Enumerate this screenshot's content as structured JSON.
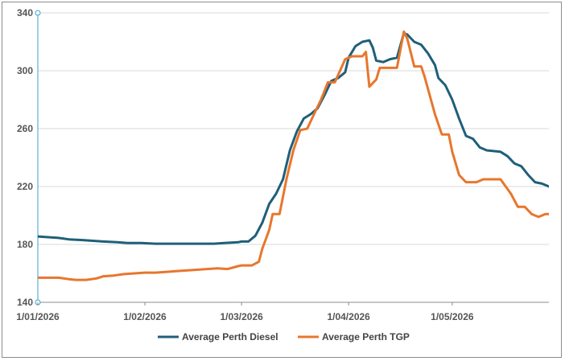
{
  "chart_data": {
    "type": "line",
    "title": "",
    "xlabel": "",
    "ylabel": "",
    "ylim": [
      140,
      340
    ],
    "y_ticks": [
      140,
      180,
      220,
      260,
      300,
      340
    ],
    "x_tick_labels": [
      "1/01/2026",
      "1/02/2026",
      "1/03/2026",
      "1/04/2026",
      "1/05/2026"
    ],
    "x_ticks": [
      "2026-01-01",
      "2026-02-01",
      "2026-03-01",
      "2026-04-01",
      "2026-05-01"
    ],
    "xlim": [
      "2026-01-01",
      "2026-05-29"
    ],
    "grid": true,
    "legend_position": "bottom",
    "series": [
      {
        "name": "Average Perth Diesel",
        "color": "#1f5f7a",
        "points": [
          [
            "2026-01-01",
            185.5
          ],
          [
            "2026-01-04",
            185
          ],
          [
            "2026-01-07",
            184.5
          ],
          [
            "2026-01-10",
            183.5
          ],
          [
            "2026-01-14",
            183
          ],
          [
            "2026-01-17",
            182.5
          ],
          [
            "2026-01-20",
            182
          ],
          [
            "2026-01-24",
            181.5
          ],
          [
            "2026-01-27",
            181
          ],
          [
            "2026-01-31",
            181
          ],
          [
            "2026-02-04",
            180.5
          ],
          [
            "2026-02-07",
            180.5
          ],
          [
            "2026-02-10",
            180.5
          ],
          [
            "2026-02-14",
            180.5
          ],
          [
            "2026-02-17",
            180.5
          ],
          [
            "2026-02-21",
            180.5
          ],
          [
            "2026-02-24",
            181
          ],
          [
            "2026-02-28",
            181.5
          ],
          [
            "2026-03-01",
            182
          ],
          [
            "2026-03-03",
            182
          ],
          [
            "2026-03-05",
            186
          ],
          [
            "2026-03-07",
            195
          ],
          [
            "2026-03-09",
            208
          ],
          [
            "2026-03-11",
            215
          ],
          [
            "2026-03-13",
            225
          ],
          [
            "2026-03-15",
            245
          ],
          [
            "2026-03-17",
            258
          ],
          [
            "2026-03-19",
            267
          ],
          [
            "2026-03-21",
            270
          ],
          [
            "2026-03-23",
            274
          ],
          [
            "2026-03-25",
            283
          ],
          [
            "2026-03-27",
            293
          ],
          [
            "2026-03-29",
            295
          ],
          [
            "2026-03-31",
            299
          ],
          [
            "2026-04-01",
            309
          ],
          [
            "2026-04-03",
            317
          ],
          [
            "2026-04-05",
            320
          ],
          [
            "2026-04-07",
            321
          ],
          [
            "2026-04-08",
            316
          ],
          [
            "2026-04-09",
            307
          ],
          [
            "2026-04-11",
            306
          ],
          [
            "2026-04-13",
            308
          ],
          [
            "2026-04-15",
            309
          ],
          [
            "2026-04-17",
            326
          ],
          [
            "2026-04-18",
            325
          ],
          [
            "2026-04-20",
            320
          ],
          [
            "2026-04-22",
            318
          ],
          [
            "2026-04-24",
            312
          ],
          [
            "2026-04-26",
            304
          ],
          [
            "2026-04-27",
            295
          ],
          [
            "2026-04-29",
            290
          ],
          [
            "2026-05-01",
            280
          ],
          [
            "2026-05-03",
            267
          ],
          [
            "2026-05-05",
            255
          ],
          [
            "2026-05-07",
            253
          ],
          [
            "2026-05-09",
            247
          ],
          [
            "2026-05-11",
            245
          ],
          [
            "2026-05-15",
            244
          ],
          [
            "2026-05-17",
            241
          ],
          [
            "2026-05-19",
            236
          ],
          [
            "2026-05-21",
            234
          ],
          [
            "2026-05-23",
            228
          ],
          [
            "2026-05-25",
            223
          ],
          [
            "2026-05-27",
            222
          ],
          [
            "2026-05-29",
            220
          ],
          [
            "2026-06-01",
            220
          ],
          [
            "2026-06-04",
            219
          ]
        ]
      },
      {
        "name": "Average Perth TGP",
        "color": "#e8762d",
        "points": [
          [
            "2026-01-01",
            157
          ],
          [
            "2026-01-04",
            157
          ],
          [
            "2026-01-07",
            157
          ],
          [
            "2026-01-10",
            156
          ],
          [
            "2026-01-12",
            155.5
          ],
          [
            "2026-01-15",
            155.5
          ],
          [
            "2026-01-18",
            156.5
          ],
          [
            "2026-01-20",
            158
          ],
          [
            "2026-01-23",
            158.5
          ],
          [
            "2026-01-26",
            159.5
          ],
          [
            "2026-01-29",
            160
          ],
          [
            "2026-02-01",
            160.5
          ],
          [
            "2026-02-04",
            160.5
          ],
          [
            "2026-02-07",
            161
          ],
          [
            "2026-02-10",
            161.5
          ],
          [
            "2026-02-13",
            162
          ],
          [
            "2026-02-16",
            162.5
          ],
          [
            "2026-02-19",
            163
          ],
          [
            "2026-02-22",
            163.5
          ],
          [
            "2026-02-25",
            163
          ],
          [
            "2026-02-28",
            165
          ],
          [
            "2026-03-01",
            165.5
          ],
          [
            "2026-03-03",
            165.5
          ],
          [
            "2026-03-04",
            165.5
          ],
          [
            "2026-03-06",
            168
          ],
          [
            "2026-03-07",
            177
          ],
          [
            "2026-03-09",
            190
          ],
          [
            "2026-03-10",
            201
          ],
          [
            "2026-03-12",
            201
          ],
          [
            "2026-03-14",
            225
          ],
          [
            "2026-03-16",
            245
          ],
          [
            "2026-03-18",
            259
          ],
          [
            "2026-03-20",
            260
          ],
          [
            "2026-03-22",
            270
          ],
          [
            "2026-03-24",
            280
          ],
          [
            "2026-03-26",
            292
          ],
          [
            "2026-03-28",
            292
          ],
          [
            "2026-03-31",
            308
          ],
          [
            "2026-04-02",
            310
          ],
          [
            "2026-04-05",
            310
          ],
          [
            "2026-04-06",
            313
          ],
          [
            "2026-04-07",
            289
          ],
          [
            "2026-04-09",
            294
          ],
          [
            "2026-04-10",
            302
          ],
          [
            "2026-04-15",
            302
          ],
          [
            "2026-04-17",
            327
          ],
          [
            "2026-04-18",
            322
          ],
          [
            "2026-04-20",
            303
          ],
          [
            "2026-04-22",
            303
          ],
          [
            "2026-04-23",
            296
          ],
          [
            "2026-04-26",
            270
          ],
          [
            "2026-04-28",
            256
          ],
          [
            "2026-04-30",
            256
          ],
          [
            "2026-05-01",
            244
          ],
          [
            "2026-05-03",
            228
          ],
          [
            "2026-05-05",
            223
          ],
          [
            "2026-05-08",
            223
          ],
          [
            "2026-05-10",
            225
          ],
          [
            "2026-05-15",
            225
          ],
          [
            "2026-05-18",
            215
          ],
          [
            "2026-05-20",
            206
          ],
          [
            "2026-05-22",
            206
          ],
          [
            "2026-05-24",
            201
          ],
          [
            "2026-05-26",
            199
          ],
          [
            "2026-05-28",
            201
          ],
          [
            "2026-05-31",
            201
          ],
          [
            "2026-06-03",
            207.5
          ],
          [
            "2026-06-05",
            207.5
          ]
        ]
      }
    ]
  }
}
